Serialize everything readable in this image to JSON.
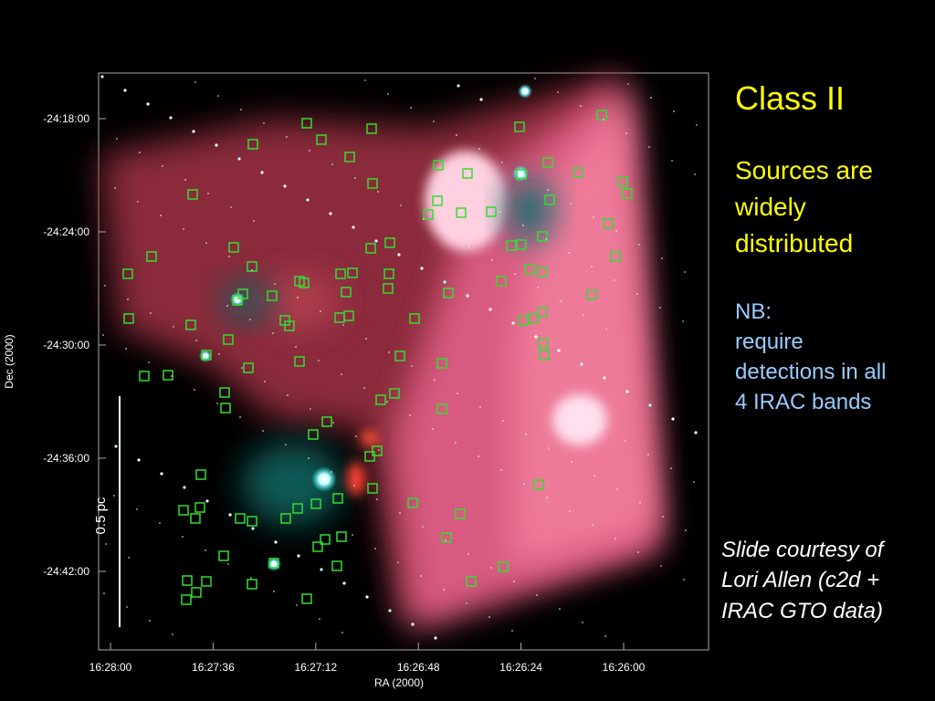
{
  "slide": {
    "title": "Class II",
    "point_lines": [
      "Sources are",
      "widely",
      "distributed"
    ],
    "note_lines": [
      "NB:",
      "require",
      "detections in all",
      "4 IRAC bands"
    ],
    "credit_lines": [
      "Slide courtesy of",
      "Lori Allen (c2d +",
      "IRAC GTO data)"
    ]
  },
  "image": {
    "x_label": "RA (2000)",
    "y_label": "Dec (2000)",
    "x_ticks": [
      "16:28:00",
      "16:27:36",
      "16:27:12",
      "16:26:48",
      "16:26:24",
      "16:26:00"
    ],
    "y_ticks": [
      "-24:18:00",
      "-24:24:00",
      "-24:30:00",
      "-24:36:00",
      "-24:42:00"
    ],
    "scale_bar": "0.5 pc"
  }
}
